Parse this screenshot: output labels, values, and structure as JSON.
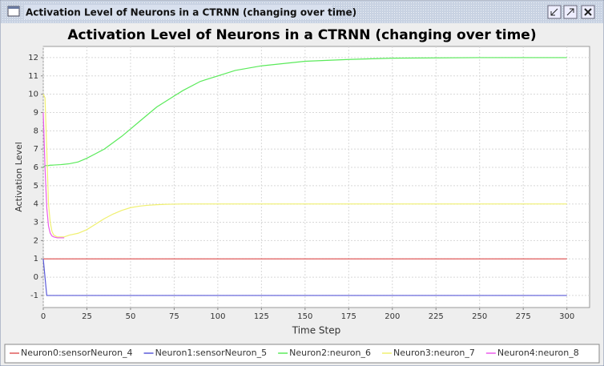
{
  "window": {
    "title": "Activation Level of Neurons in a CTRNN (changing over time)"
  },
  "chart_data": {
    "type": "line",
    "title": "Activation Level of Neurons in a CTRNN (changing over time)",
    "x_label": "Time Step",
    "y_label": "Activation Level",
    "x": [
      0,
      1,
      2,
      3,
      4,
      5,
      6,
      8,
      10,
      12,
      15,
      20,
      25,
      30,
      35,
      40,
      45,
      50,
      55,
      60,
      65,
      70,
      75,
      80,
      90,
      100,
      110,
      125,
      150,
      175,
      200,
      250,
      300
    ],
    "series": [
      {
        "name": "Neuron0:sensorNeuron_4",
        "color": "#e05a5a",
        "values": [
          1,
          1,
          1,
          1,
          1,
          1,
          1,
          1,
          1,
          1,
          1,
          1,
          1,
          1,
          1,
          1,
          1,
          1,
          1,
          1,
          1,
          1,
          1,
          1,
          1,
          1,
          1,
          1,
          1,
          1,
          1,
          1,
          1
        ]
      },
      {
        "name": "Neuron1:sensorNeuron_5",
        "color": "#5a5ad8",
        "values": [
          1,
          0,
          -1,
          -1,
          -1,
          -1,
          -1,
          -1,
          -1,
          -1,
          -1,
          -1,
          -1,
          -1,
          -1,
          -1,
          -1,
          -1,
          -1,
          -1,
          -1,
          -1,
          -1,
          -1,
          -1,
          -1,
          -1,
          -1,
          -1,
          -1,
          -1,
          -1,
          -1
        ]
      },
      {
        "name": "Neuron2:neuron_6",
        "color": "#5aea5a",
        "values": [
          6,
          6.1,
          6.1,
          6.1,
          6.12,
          6.12,
          6.13,
          6.14,
          6.15,
          6.17,
          6.2,
          6.3,
          6.5,
          6.75,
          7.0,
          7.35,
          7.7,
          8.1,
          8.5,
          8.9,
          9.3,
          9.6,
          9.9,
          10.2,
          10.7,
          11.0,
          11.3,
          11.55,
          11.8,
          11.9,
          11.97,
          12,
          12
        ]
      },
      {
        "name": "Neuron3:neuron_7",
        "color": "#f0f070",
        "values": [
          10,
          9.8,
          7,
          4,
          3,
          2.5,
          2.3,
          2.2,
          2.2,
          2.2,
          2.3,
          2.4,
          2.6,
          2.9,
          3.2,
          3.45,
          3.65,
          3.8,
          3.88,
          3.93,
          3.96,
          3.98,
          3.99,
          4,
          4,
          4,
          4,
          4,
          4,
          4,
          4,
          4,
          4
        ]
      },
      {
        "name": "Neuron4:neuron_8",
        "color": "#ea5aea",
        "values": [
          9,
          6,
          3.8,
          2.8,
          2.4,
          2.25,
          2.2,
          2.15,
          2.15,
          2.15,
          null,
          null,
          null,
          null,
          null,
          null,
          null,
          null,
          null,
          null,
          null,
          null,
          null,
          null,
          null,
          null,
          null,
          null,
          null,
          null,
          null,
          null,
          null
        ]
      }
    ],
    "xlim": [
      0,
      313
    ],
    "ylim": [
      -1.66,
      12.61
    ],
    "xticks": [
      0,
      25,
      50,
      75,
      100,
      125,
      150,
      175,
      200,
      225,
      250,
      275,
      300
    ],
    "yticks": [
      -1,
      0,
      1,
      2,
      3,
      4,
      5,
      6,
      7,
      8,
      9,
      10,
      11,
      12
    ],
    "grid": true,
    "legend": "bottom"
  }
}
